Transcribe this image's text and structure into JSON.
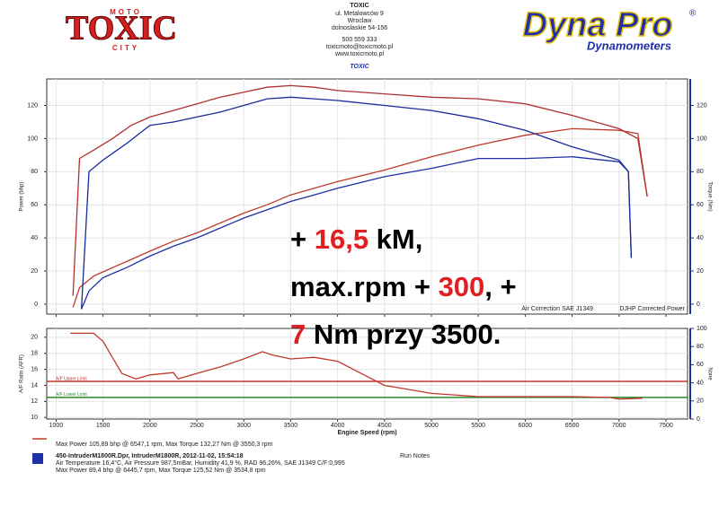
{
  "header": {
    "logo": "TOXIC",
    "logo_top": "MOTO",
    "logo_bottom": "CITY",
    "address": [
      "TOXIC",
      "ul. Metalowców 9",
      "Wroclaw",
      "dolnoslaskie 54-156",
      "500 559 333",
      "toxicmoto@toxicmoto.pl",
      "www.toxicmoto.pl"
    ],
    "shop": "TOXIC",
    "brand": "Dyna Pro",
    "brand_mark": "®",
    "brand_sub": "Dynamometers"
  },
  "chart_data": [
    {
      "type": "line",
      "ylabel": "Power (bhp)",
      "y2label": "Torque (Nm)",
      "corner_left": "Air Correction SAE J1349",
      "corner_right": "DJHP Corrected Power",
      "xlim": [
        900,
        7730
      ],
      "xticks": [
        1000,
        1500,
        2000,
        2500,
        3000,
        3500,
        4000,
        4500,
        5000,
        5500,
        6000,
        6500,
        7000,
        7500
      ],
      "ylim": [
        -6,
        136
      ],
      "yticks": [
        0,
        20,
        40,
        60,
        80,
        100,
        120
      ],
      "y2lim": [
        -6,
        136
      ],
      "y2ticks": [
        0,
        20,
        40,
        60,
        80,
        100,
        120
      ],
      "grid": true,
      "series": [
        {
          "color": "#c0392b",
          "x": [
            1180,
            1250,
            1400,
            1600,
            1800,
            2000,
            2250,
            2500,
            2750,
            3000,
            3250,
            3500,
            3750,
            4000,
            4500,
            5000,
            5500,
            6000,
            6500,
            7000,
            7200,
            7300
          ],
          "values": [
            -2,
            10,
            17,
            22,
            27,
            32,
            38,
            43,
            49,
            55,
            60,
            66,
            70,
            74,
            81,
            89,
            96,
            102,
            106,
            105,
            103,
            65
          ]
        },
        {
          "color": "#b03030",
          "axis": "y2",
          "x": [
            1180,
            1250,
            1400,
            1600,
            1800,
            2000,
            2250,
            2500,
            2750,
            3000,
            3250,
            3500,
            3750,
            4000,
            4500,
            5000,
            5500,
            6000,
            6500,
            7000,
            7200,
            7300
          ],
          "values": [
            5,
            88,
            93,
            100,
            108,
            113,
            117,
            121,
            125,
            128,
            131,
            132,
            131,
            129,
            127,
            125,
            124,
            121,
            114,
            106,
            100,
            65
          ]
        },
        {
          "color": "#1f2fa8",
          "x": [
            1270,
            1350,
            1500,
            1750,
            2000,
            2250,
            2500,
            2750,
            3000,
            3250,
            3500,
            3750,
            4000,
            4500,
            5000,
            5500,
            6000,
            6500,
            7000,
            7100,
            7130
          ],
          "values": [
            -3,
            8,
            16,
            22,
            29,
            35,
            40,
            46,
            52,
            57,
            62,
            66,
            70,
            77,
            82,
            88,
            88,
            89,
            86,
            80,
            28
          ]
        },
        {
          "color": "#1a2a9a",
          "axis": "y2",
          "x": [
            1270,
            1350,
            1500,
            1750,
            2000,
            2250,
            2500,
            2750,
            3000,
            3250,
            3500,
            3750,
            4000,
            4500,
            5000,
            5500,
            6000,
            6500,
            7000,
            7100,
            7130
          ],
          "values": [
            -3,
            80,
            87,
            97,
            108,
            110,
            113,
            116,
            120,
            124,
            125,
            124,
            123,
            120,
            117,
            112,
            105,
            95,
            87,
            80,
            28
          ]
        }
      ],
      "annotation": [
        [
          {
            "text": "+ ",
            "color": "#000000"
          },
          {
            "text": "16,5",
            "color": "#e02020"
          },
          {
            "text": " kM,",
            "color": "#000000"
          }
        ],
        [
          {
            "text": "max.rpm + ",
            "color": "#000000"
          },
          {
            "text": "300",
            "color": "#e02020"
          },
          {
            "text": ", +",
            "color": "#000000"
          }
        ],
        [
          {
            "text": "7",
            "color": "#e02020"
          },
          {
            "text": " Nm przy 3500.",
            "color": "#000000"
          }
        ]
      ]
    },
    {
      "type": "line",
      "ylabel": "A/F Ratio (AFR)",
      "y2label": "None",
      "xlabel": "Engine Speed (rpm)",
      "xlim": [
        900,
        7730
      ],
      "xticks": [
        1000,
        1500,
        2000,
        2500,
        3000,
        3500,
        4000,
        4500,
        5000,
        5500,
        6000,
        6500,
        7000,
        7500
      ],
      "ylim": [
        9.8,
        21.1
      ],
      "yticks": [
        10,
        12,
        14,
        16,
        18,
        20
      ],
      "y2lim": [
        0,
        100
      ],
      "y2ticks": [
        0,
        20,
        40,
        60,
        80,
        100
      ],
      "grid": true,
      "reference_lines": [
        {
          "label": "A/F Upper Limit",
          "value": 14.5,
          "color": "#c0392b"
        },
        {
          "label": "A/F Lower Limit",
          "value": 12.5,
          "color": "#2a8a2a"
        }
      ],
      "series": [
        {
          "color": "#c0392b",
          "x": [
            1150,
            1400,
            1500,
            1700,
            1850,
            2000,
            2250,
            2300,
            2500,
            2750,
            3000,
            3200,
            3300,
            3500,
            3750,
            4000,
            4250,
            4500,
            4750,
            5000,
            5500,
            6000,
            6500,
            6900,
            7000,
            7250
          ],
          "values": [
            20.5,
            20.5,
            19.5,
            15.5,
            14.8,
            15.3,
            15.6,
            14.8,
            15.5,
            16.3,
            17.3,
            18.2,
            17.8,
            17.3,
            17.5,
            17,
            15.5,
            14,
            13.5,
            13,
            12.6,
            12.6,
            12.6,
            12.5,
            12.3,
            12.4
          ]
        }
      ]
    }
  ],
  "footer": {
    "line1": "Max Power 105,89 bhp @ 6547,1 rpm, Max Torque 132,27 Nm @ 3550,3 rpm",
    "run": "450-IntruderM1800R.Dpr,   IntruderM1800R,   2012-11-02,   15:54:18",
    "notes": "Run Notes",
    "conditions": "Air Temperature 16,4°C, Air Pressure 987,5mBar, Humidity 41,9 %, RAD 96,26%,   SAE J1349  C/F:0,995",
    "line2": "Max Power 89,4 bhp @ 6445,7 rpm, Max Torque 125,52 Nm @ 3534,8 rpm"
  }
}
